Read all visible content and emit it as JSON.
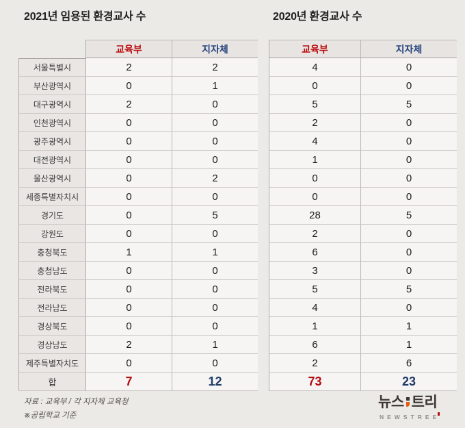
{
  "titles": {
    "left": "2021년 임용된 환경교사 수",
    "right": "2020년 환경교사 수"
  },
  "total_label": "합",
  "chart_data": [
    {
      "type": "table",
      "title": "2021년 임용된 환경교사 수",
      "columns": [
        "교육부",
        "지자체"
      ],
      "row_labels": [
        "서울특별시",
        "부산광역시",
        "대구광역시",
        "인천광역시",
        "광주광역시",
        "대전광역시",
        "울산광역시",
        "세종특별자치시",
        "경기도",
        "강원도",
        "충청북도",
        "충청남도",
        "전라북도",
        "전라남도",
        "경상북도",
        "경상남도",
        "제주특별자치도"
      ],
      "rows": [
        [
          2,
          2
        ],
        [
          0,
          1
        ],
        [
          2,
          0
        ],
        [
          0,
          0
        ],
        [
          0,
          0
        ],
        [
          0,
          0
        ],
        [
          0,
          2
        ],
        [
          0,
          0
        ],
        [
          0,
          5
        ],
        [
          0,
          0
        ],
        [
          1,
          1
        ],
        [
          0,
          0
        ],
        [
          0,
          0
        ],
        [
          0,
          0
        ],
        [
          0,
          0
        ],
        [
          2,
          1
        ],
        [
          0,
          0
        ]
      ],
      "totals": [
        7,
        12
      ],
      "total_label": "합"
    },
    {
      "type": "table",
      "title": "2020년 환경교사 수",
      "columns": [
        "교육부",
        "지자체"
      ],
      "row_labels": [
        "서울특별시",
        "부산광역시",
        "대구광역시",
        "인천광역시",
        "광주광역시",
        "대전광역시",
        "울산광역시",
        "세종특별자치시",
        "경기도",
        "강원도",
        "충청북도",
        "충청남도",
        "전라북도",
        "전라남도",
        "경상북도",
        "경상남도",
        "제주특별자치도"
      ],
      "rows": [
        [
          4,
          0
        ],
        [
          0,
          0
        ],
        [
          5,
          5
        ],
        [
          2,
          0
        ],
        [
          4,
          0
        ],
        [
          1,
          0
        ],
        [
          0,
          0
        ],
        [
          0,
          0
        ],
        [
          28,
          5
        ],
        [
          2,
          0
        ],
        [
          6,
          0
        ],
        [
          3,
          0
        ],
        [
          5,
          5
        ],
        [
          4,
          0
        ],
        [
          1,
          1
        ],
        [
          6,
          1
        ],
        [
          2,
          6
        ]
      ],
      "totals": [
        73,
        23
      ],
      "total_label": "합"
    }
  ],
  "footnotes": {
    "source": "자료 : 교육부 / 각 지자체 교육청",
    "note": "※공립학교 기준"
  },
  "logo": {
    "kr_left": "뉴스",
    "kr_right": "트리",
    "en": "NEWSTREE"
  },
  "colors": {
    "header_red": "#BB0B0F",
    "header_blue": "#24437D",
    "total_red": "#B50C10",
    "total_blue": "#1F3A68",
    "logo_orange": "#E8590F"
  }
}
